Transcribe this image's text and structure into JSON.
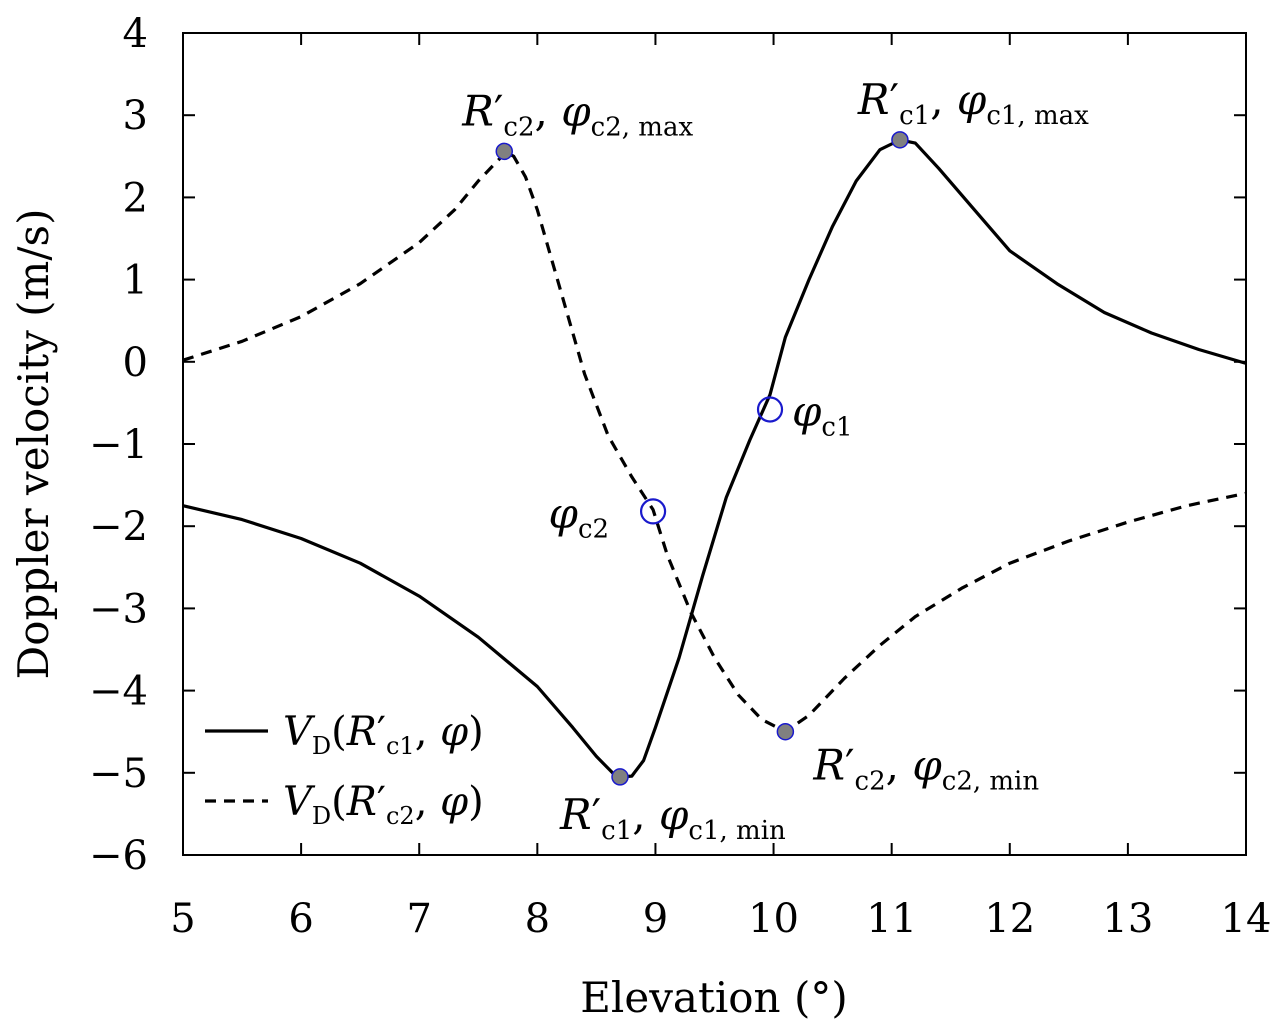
{
  "chart_data": {
    "type": "line",
    "xlabel": "Elevation (°)",
    "ylabel": "Doppler velocity (m/s)",
    "xlim": [
      5,
      14
    ],
    "ylim": [
      -6,
      4
    ],
    "xticks": [
      "5",
      "6",
      "7",
      "8",
      "9",
      "10",
      "11",
      "12",
      "13",
      "14"
    ],
    "yticks": [
      "4",
      "3",
      "2",
      "1",
      "0",
      "-1",
      "-2",
      "-3",
      "-4",
      "-5",
      "-6"
    ],
    "grid": false,
    "legend_position": "bottom-left",
    "series": [
      {
        "name": "V_D(R'_c1, φ)",
        "style": "solid",
        "color": "#000000",
        "points": [
          [
            5.0,
            -1.75
          ],
          [
            5.5,
            -1.92
          ],
          [
            6.0,
            -2.15
          ],
          [
            6.5,
            -2.45
          ],
          [
            7.0,
            -2.85
          ],
          [
            7.5,
            -3.35
          ],
          [
            8.0,
            -3.95
          ],
          [
            8.3,
            -4.45
          ],
          [
            8.5,
            -4.8
          ],
          [
            8.65,
            -5.02
          ],
          [
            8.7,
            -5.05
          ],
          [
            8.8,
            -5.04
          ],
          [
            8.9,
            -4.85
          ],
          [
            9.0,
            -4.45
          ],
          [
            9.2,
            -3.6
          ],
          [
            9.4,
            -2.6
          ],
          [
            9.6,
            -1.65
          ],
          [
            9.8,
            -0.95
          ],
          [
            9.97,
            -0.4
          ],
          [
            10.1,
            0.3
          ],
          [
            10.3,
            1.0
          ],
          [
            10.5,
            1.65
          ],
          [
            10.7,
            2.2
          ],
          [
            10.9,
            2.58
          ],
          [
            11.07,
            2.7
          ],
          [
            11.2,
            2.66
          ],
          [
            11.4,
            2.35
          ],
          [
            11.7,
            1.85
          ],
          [
            12.0,
            1.35
          ],
          [
            12.4,
            0.95
          ],
          [
            12.8,
            0.6
          ],
          [
            13.2,
            0.35
          ],
          [
            13.6,
            0.15
          ],
          [
            14.0,
            -0.02
          ]
        ]
      },
      {
        "name": "V_D(R'_c2, φ)",
        "style": "dashed",
        "color": "#000000",
        "points": [
          [
            5.0,
            0.02
          ],
          [
            5.5,
            0.25
          ],
          [
            6.0,
            0.55
          ],
          [
            6.5,
            0.95
          ],
          [
            7.0,
            1.45
          ],
          [
            7.3,
            1.85
          ],
          [
            7.5,
            2.2
          ],
          [
            7.7,
            2.5
          ],
          [
            7.72,
            2.56
          ],
          [
            7.8,
            2.5
          ],
          [
            7.9,
            2.25
          ],
          [
            8.0,
            1.85
          ],
          [
            8.2,
            0.85
          ],
          [
            8.4,
            -0.15
          ],
          [
            8.6,
            -0.9
          ],
          [
            8.8,
            -1.4
          ],
          [
            8.98,
            -1.8
          ],
          [
            9.1,
            -2.35
          ],
          [
            9.3,
            -3.05
          ],
          [
            9.5,
            -3.6
          ],
          [
            9.7,
            -4.05
          ],
          [
            9.9,
            -4.35
          ],
          [
            10.1,
            -4.5
          ],
          [
            10.3,
            -4.3
          ],
          [
            10.6,
            -3.85
          ],
          [
            10.9,
            -3.45
          ],
          [
            11.2,
            -3.1
          ],
          [
            11.6,
            -2.75
          ],
          [
            12.0,
            -2.45
          ],
          [
            12.5,
            -2.18
          ],
          [
            13.0,
            -1.95
          ],
          [
            13.5,
            -1.75
          ],
          [
            14.0,
            -1.6
          ]
        ]
      }
    ],
    "markers": [
      {
        "kind": "filled",
        "x": 7.72,
        "y": 2.56,
        "label": "R'c2, φc2, max",
        "main": "R",
        "prime": "′",
        "sub": "c2",
        "sep": ", ",
        "main2": "φ",
        "sub2": "c2, max",
        "anchor": "above-right"
      },
      {
        "kind": "filled",
        "x": 11.07,
        "y": 2.7,
        "label": "R'c1, φc1, max",
        "main": "R",
        "prime": "′",
        "sub": "c1",
        "sep": ", ",
        "main2": "φ",
        "sub2": "c1, max",
        "anchor": "above-right"
      },
      {
        "kind": "filled",
        "x": 8.7,
        "y": -5.05,
        "label": "R'c1, φc1, min",
        "main": "R",
        "prime": "′",
        "sub": "c1",
        "sep": ", ",
        "main2": "φ",
        "sub2": "c1, min",
        "anchor": "below-right"
      },
      {
        "kind": "filled",
        "x": 10.1,
        "y": -4.5,
        "label": "R'c2, φc2, min",
        "main": "R",
        "prime": "′",
        "sub": "c2",
        "sep": ", ",
        "main2": "φ",
        "sub2": "c2, min",
        "anchor": "below-right"
      },
      {
        "kind": "open",
        "x": 9.97,
        "y": -0.58,
        "label": "φc1",
        "main": "",
        "prime": "",
        "sub": "",
        "sep": "",
        "main2": "φ",
        "sub2": "c1",
        "anchor": "right"
      },
      {
        "kind": "open",
        "x": 8.98,
        "y": -1.82,
        "label": "φc2",
        "main": "",
        "prime": "",
        "sub": "",
        "sep": "",
        "main2": "φ",
        "sub2": "c2",
        "anchor": "left"
      }
    ],
    "legend": [
      {
        "style": "solid",
        "main": "V",
        "sub": "D",
        "open": "(",
        "main2": "R",
        "prime": "′",
        "sub2": "c1",
        "sep": ", ",
        "main3": "φ",
        "close": ")"
      },
      {
        "style": "dashed",
        "main": "V",
        "sub": "D",
        "open": "(",
        "main2": "R",
        "prime": "′",
        "sub2": "c2",
        "sep": ", ",
        "main3": "φ",
        "close": ")"
      }
    ],
    "colors": {
      "marker_fill": "#808080",
      "marker_edge": "#1a1acc",
      "line": "#000000"
    }
  }
}
